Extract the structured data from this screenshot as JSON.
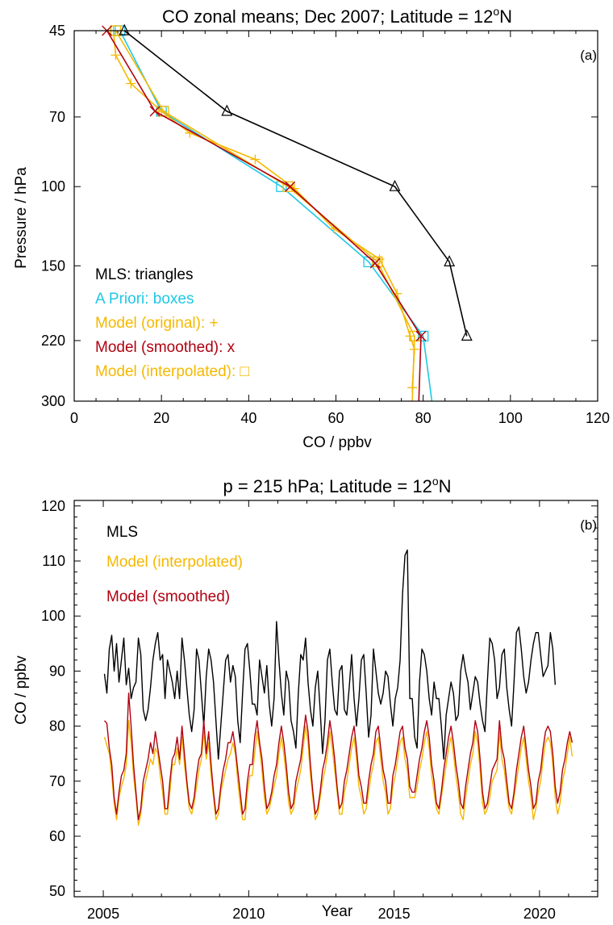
{
  "chart_data": [
    {
      "type": "line",
      "panel_label": "(a)",
      "title": "CO zonal means; Dec 2007; Latitude = 12",
      "title_sup": "o",
      "title_suffix": "N",
      "xlabel": "CO / ppbv",
      "ylabel": "Pressure / hPa",
      "xlim": [
        0,
        120
      ],
      "ylim": [
        45,
        300
      ],
      "yscale": "log",
      "y_reversed": true,
      "x_ticks": [
        0,
        20,
        40,
        60,
        80,
        100,
        120
      ],
      "y_ticks": [
        45,
        70,
        100,
        150,
        220,
        300
      ],
      "legend_placement": "bottom-left",
      "grid": false,
      "series": [
        {
          "name": "MLS: triangles",
          "color": "#000000",
          "marker": "triangle",
          "x": [
            11.5,
            35,
            73.5,
            86,
            90
          ],
          "y": [
            45,
            68,
            100,
            147,
            215
          ]
        },
        {
          "name": "A Priori: boxes",
          "color": "#1EC8E6",
          "marker": "box",
          "x": [
            10.5,
            20,
            47.5,
            67.5,
            80,
            82
          ],
          "y": [
            45,
            68,
            100,
            147,
            215,
            300
          ]
        },
        {
          "name": "Model (original): +",
          "color": "#F5B800",
          "marker": "plus",
          "x": [
            9,
            9.5,
            13,
            20,
            26.5,
            41.5,
            50.5,
            59.5,
            70,
            74,
            77,
            78,
            77.5
          ],
          "y": [
            45,
            51,
            59,
            68,
            76,
            87,
            101,
            124,
            145,
            173,
            215,
            230,
            280
          ]
        },
        {
          "name": "Model (smoothed): x",
          "color": "#B00010",
          "marker": "x",
          "x": [
            7.5,
            18.5,
            49.5,
            69,
            79.5,
            79
          ],
          "y": [
            45,
            68,
            100,
            148,
            215,
            300
          ]
        },
        {
          "name": "Model (interpolated): □",
          "color": "#F5B800",
          "marker": "box",
          "x": [
            9.5,
            20.5,
            49,
            69.5,
            78,
            77.5
          ],
          "y": [
            45,
            68,
            100,
            147,
            215,
            300
          ]
        }
      ]
    },
    {
      "type": "line",
      "panel_label": "(b)",
      "title": "p = 215 hPa; Latitude = 12",
      "title_sup": "o",
      "title_suffix": "N",
      "xlabel": "Year",
      "ylabel": "CO / ppbv",
      "xlim": [
        2004,
        2022
      ],
      "ylim": [
        49,
        121
      ],
      "x_ticks": [
        2005,
        2010,
        2015,
        2020
      ],
      "y_ticks": [
        50,
        60,
        70,
        80,
        90,
        100,
        110,
        120
      ],
      "x_start": 2005.04,
      "x_step_months": 1,
      "legend_placement": "top-left",
      "grid": false,
      "series": [
        {
          "name": "MLS",
          "color": "#000000",
          "values": [
            89.5,
            86,
            94,
            96.5,
            90,
            95,
            88,
            92,
            96,
            87.5,
            90.5,
            85,
            87,
            88,
            96,
            93,
            83,
            81,
            83,
            87,
            92,
            95,
            97,
            92,
            93,
            85,
            92,
            90,
            88,
            85,
            90,
            85,
            96,
            92,
            87,
            82,
            79,
            83,
            94,
            92,
            86,
            80,
            89,
            94,
            92,
            88,
            81,
            74,
            80,
            86,
            92,
            93,
            88,
            91,
            89,
            81,
            77,
            86,
            94,
            95,
            90,
            84,
            84,
            82,
            92,
            89,
            86,
            91,
            84,
            80,
            85,
            99,
            92,
            86,
            82,
            90,
            88,
            81,
            79,
            76,
            86,
            93,
            92,
            96,
            88,
            83,
            80,
            87,
            90,
            83,
            75,
            81,
            92,
            94,
            88,
            83,
            82,
            90,
            91,
            83,
            82,
            87,
            93,
            85,
            80,
            85,
            92,
            93,
            86,
            78,
            82,
            94,
            90,
            86,
            84,
            86,
            90,
            89,
            84,
            80,
            85,
            87,
            92,
            104,
            111,
            112,
            85,
            85,
            78,
            76,
            88,
            94,
            93,
            90,
            85,
            82,
            88,
            85,
            85,
            80,
            74,
            82,
            85,
            88,
            86,
            81,
            82,
            90,
            93,
            90,
            88,
            83,
            86,
            89,
            88,
            84,
            81,
            79,
            88,
            96,
            95,
            92,
            85,
            87,
            93,
            94,
            87,
            83,
            80,
            88,
            97,
            98,
            94,
            89,
            86,
            88,
            92,
            95,
            97,
            97,
            93,
            89,
            90,
            91,
            97,
            94,
            87.5
          ]
        },
        {
          "name": "Model (interpolated)",
          "color": "#F5B800",
          "values": [
            78,
            76.5,
            75,
            71,
            66,
            63,
            67,
            69,
            70.5,
            73,
            81,
            77,
            71,
            67,
            62,
            64,
            68,
            70,
            72,
            74,
            73,
            76,
            75,
            71,
            68,
            64,
            64,
            68,
            73,
            73,
            76,
            73,
            78,
            73,
            69,
            65,
            64,
            66,
            69,
            72,
            74,
            79,
            74,
            77,
            71,
            67,
            63,
            64,
            68,
            70,
            72,
            74,
            75,
            77,
            75,
            70,
            66,
            63,
            63,
            68,
            71,
            71,
            75,
            79,
            76,
            72,
            67,
            64,
            65,
            67,
            69,
            71,
            75,
            78,
            75,
            71,
            66,
            64,
            65,
            68,
            70,
            72,
            76,
            80,
            77,
            71,
            67,
            63,
            64,
            67,
            70,
            72,
            75,
            79,
            76,
            72,
            68,
            64,
            64,
            68,
            70,
            73,
            76,
            78,
            74,
            69,
            67,
            64,
            65,
            68,
            71,
            73,
            77,
            78,
            74,
            70,
            68,
            64,
            65,
            69,
            71,
            74,
            77,
            78,
            74,
            72,
            67,
            67,
            67,
            69,
            72,
            74,
            77,
            79,
            76,
            71,
            68,
            65,
            64,
            67,
            70,
            73,
            76,
            78,
            75,
            71,
            68,
            64,
            63,
            67,
            70,
            73,
            75,
            79,
            77,
            72,
            66,
            64,
            65,
            67,
            70,
            71,
            72,
            79,
            74,
            72,
            68,
            65,
            64,
            67,
            70,
            73,
            76,
            78,
            74,
            70,
            67,
            63,
            65,
            68,
            70,
            74,
            77,
            78,
            77,
            73,
            67,
            64,
            66,
            70,
            72,
            75,
            78,
            74.5
          ]
        },
        {
          "name": "Model (smoothed)",
          "color": "#B00010",
          "values": [
            81,
            80.5,
            76,
            73,
            67,
            64,
            68,
            71,
            72,
            75,
            86,
            80,
            73,
            68,
            63,
            65,
            70,
            72,
            74,
            77,
            75,
            79,
            76,
            73,
            70,
            65,
            65,
            70,
            74,
            75,
            78,
            74,
            80,
            75,
            70,
            66,
            65,
            67,
            71,
            74,
            75,
            81,
            75,
            79,
            73,
            68,
            64,
            65,
            69,
            72,
            74,
            77,
            77,
            79,
            76,
            72,
            68,
            64,
            65,
            70,
            73,
            73,
            78,
            81,
            77,
            74,
            69,
            65,
            66,
            68,
            71,
            73,
            77,
            80,
            77,
            73,
            68,
            65,
            66,
            70,
            72,
            74,
            78,
            82,
            79,
            73,
            68,
            64,
            65,
            68,
            72,
            74,
            77,
            81,
            78,
            74,
            69,
            65,
            66,
            70,
            72,
            75,
            78,
            80,
            76,
            71,
            69,
            66,
            66,
            70,
            73,
            75,
            79,
            80,
            76,
            72,
            70,
            66,
            66,
            71,
            73,
            76,
            79,
            80,
            76,
            74,
            69,
            68,
            68,
            71,
            74,
            76,
            79,
            81,
            78,
            73,
            70,
            66,
            65,
            68,
            72,
            75,
            78,
            80,
            77,
            73,
            70,
            66,
            65,
            69,
            72,
            75,
            77,
            81,
            79,
            74,
            68,
            65,
            66,
            69,
            72,
            73,
            74,
            81,
            76,
            74,
            70,
            66,
            65,
            68,
            72,
            75,
            78,
            80,
            76,
            72,
            69,
            65,
            66,
            70,
            72,
            76,
            79,
            80,
            79,
            75,
            69,
            66,
            68,
            72,
            74,
            77,
            79,
            77
          ]
        }
      ]
    }
  ]
}
